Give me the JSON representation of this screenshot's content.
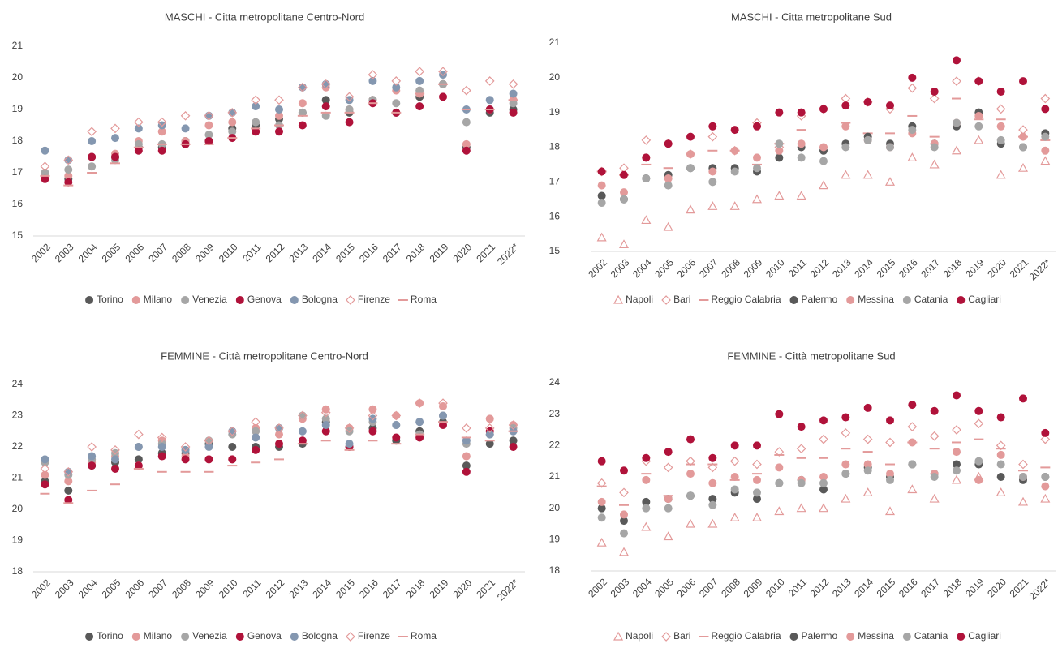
{
  "chart_data": [
    {
      "type": "scatter",
      "title": "MASCHI - Citta metropolitane Centro-Nord",
      "categories": [
        "2002",
        "2003",
        "2004",
        "2005",
        "2006",
        "2007",
        "2008",
        "2009",
        "2010",
        "2011",
        "2012",
        "2013",
        "2014",
        "2015",
        "2016",
        "2017",
        "2018",
        "2019",
        "2020",
        "2021",
        "2022*"
      ],
      "ylim": [
        15,
        21
      ],
      "yticks": [
        15,
        16,
        17,
        18,
        19,
        20,
        21
      ],
      "series": [
        {
          "name": "Torino",
          "color": "#595959",
          "marker": "circle",
          "values": [
            17.0,
            16.8,
            17.5,
            17.5,
            17.8,
            17.8,
            18.0,
            18.0,
            18.4,
            18.5,
            18.7,
            18.9,
            19.3,
            18.9,
            19.3,
            18.9,
            19.4,
            19.8,
            17.8,
            18.9,
            19.0
          ]
        },
        {
          "name": "Milano",
          "color": "#e39a9a",
          "marker": "circle",
          "values": [
            16.9,
            16.9,
            17.5,
            17.6,
            18.0,
            18.3,
            18.0,
            18.5,
            18.6,
            18.3,
            18.8,
            19.2,
            19.7,
            19.0,
            19.3,
            19.6,
            19.5,
            19.8,
            17.9,
            19.0,
            19.3
          ]
        },
        {
          "name": "Venezia",
          "color": "#a6a6a6",
          "marker": "circle",
          "values": [
            17.0,
            17.1,
            17.2,
            17.4,
            17.9,
            17.9,
            17.9,
            18.2,
            18.3,
            18.6,
            18.5,
            18.9,
            18.8,
            19.0,
            19.3,
            19.2,
            19.6,
            19.8,
            18.6,
            19.0,
            19.2
          ]
        },
        {
          "name": "Genova",
          "color": "#b0123a",
          "marker": "circle",
          "values": [
            16.8,
            16.7,
            17.5,
            17.5,
            17.7,
            17.7,
            17.9,
            18.0,
            18.1,
            18.3,
            18.3,
            18.5,
            19.1,
            18.6,
            19.2,
            18.9,
            19.1,
            19.4,
            17.7,
            19.0,
            18.9
          ]
        },
        {
          "name": "Bologna",
          "color": "#8497b0",
          "marker": "circle",
          "values": [
            17.7,
            17.4,
            18.0,
            18.1,
            18.4,
            18.5,
            18.4,
            18.8,
            18.9,
            19.1,
            19.0,
            19.7,
            19.8,
            19.3,
            19.9,
            19.7,
            19.9,
            20.1,
            19.0,
            19.3,
            19.5
          ]
        },
        {
          "name": "Firenze",
          "color": "#e39a9a",
          "marker": "diamond",
          "values": [
            17.2,
            17.4,
            18.3,
            18.4,
            18.6,
            18.6,
            18.8,
            18.8,
            18.9,
            19.3,
            19.3,
            19.7,
            19.8,
            19.4,
            20.1,
            19.9,
            20.2,
            20.2,
            19.6,
            19.9,
            19.8
          ]
        },
        {
          "name": "Roma",
          "color": "#e39a9a",
          "marker": "dash",
          "values": [
            16.9,
            16.6,
            17.0,
            17.3,
            17.8,
            17.9,
            17.9,
            17.9,
            18.1,
            18.4,
            18.5,
            18.8,
            18.9,
            18.9,
            19.2,
            18.9,
            19.5,
            19.8,
            19.0,
            19.0,
            19.3
          ]
        }
      ]
    },
    {
      "type": "scatter",
      "title": "MASCHI - Citta metropolitane Sud",
      "categories": [
        "2002",
        "2003",
        "2004",
        "2005",
        "2006",
        "2007",
        "2008",
        "2009",
        "2010",
        "2011",
        "2012",
        "2013",
        "2014",
        "2015",
        "2016",
        "2017",
        "2018",
        "2019",
        "2020",
        "2021",
        "2022*"
      ],
      "ylim": [
        15,
        21
      ],
      "yticks": [
        15,
        16,
        17,
        18,
        19,
        20,
        21
      ],
      "series": [
        {
          "name": "Napoli",
          "color": "#e39a9a",
          "marker": "triangle",
          "values": [
            15.4,
            15.2,
            15.9,
            15.7,
            16.2,
            16.3,
            16.3,
            16.5,
            16.6,
            16.6,
            16.9,
            17.2,
            17.2,
            17.0,
            17.7,
            17.5,
            17.9,
            18.2,
            17.2,
            17.4,
            17.6
          ]
        },
        {
          "name": "Bari",
          "color": "#e39a9a",
          "marker": "diamond",
          "values": [
            17.3,
            17.4,
            18.2,
            18.1,
            17.8,
            18.3,
            17.9,
            18.7,
            18.0,
            18.9,
            19.1,
            19.4,
            19.3,
            19.1,
            19.7,
            19.4,
            19.9,
            19.9,
            19.1,
            18.5,
            19.4
          ]
        },
        {
          "name": "Reggio Calabria",
          "color": "#e39a9a",
          "marker": "dash",
          "values": [
            17.3,
            17.2,
            17.5,
            17.4,
            17.8,
            17.9,
            17.9,
            17.5,
            18.1,
            18.5,
            18.0,
            18.7,
            18.4,
            18.4,
            18.9,
            18.3,
            19.4,
            18.8,
            18.8,
            18.3,
            18.2
          ]
        },
        {
          "name": "Palermo",
          "color": "#595959",
          "marker": "circle",
          "values": [
            16.6,
            16.5,
            17.1,
            17.2,
            17.4,
            17.4,
            17.4,
            17.3,
            17.7,
            18.0,
            17.9,
            18.1,
            18.3,
            18.1,
            18.6,
            18.1,
            18.6,
            19.0,
            18.1,
            18.0,
            18.4
          ]
        },
        {
          "name": "Messina",
          "color": "#e39a9a",
          "marker": "circle",
          "values": [
            16.9,
            16.7,
            17.7,
            17.1,
            17.8,
            17.3,
            17.9,
            17.7,
            17.9,
            18.1,
            18.0,
            18.6,
            18.2,
            18.0,
            18.4,
            18.1,
            18.7,
            18.9,
            18.6,
            18.3,
            17.9
          ]
        },
        {
          "name": "Catania",
          "color": "#a6a6a6",
          "marker": "circle",
          "values": [
            16.4,
            16.5,
            17.1,
            16.9,
            17.4,
            17.0,
            17.3,
            17.4,
            18.1,
            17.7,
            17.6,
            18.0,
            18.2,
            18.0,
            18.5,
            18.0,
            18.7,
            18.6,
            18.2,
            18.0,
            18.3
          ]
        },
        {
          "name": "Cagliari",
          "color": "#b0123a",
          "marker": "circle",
          "values": [
            17.3,
            17.2,
            17.7,
            18.1,
            18.3,
            18.6,
            18.5,
            18.6,
            19.0,
            19.0,
            19.1,
            19.2,
            19.3,
            19.2,
            20.0,
            19.6,
            20.5,
            19.9,
            19.6,
            19.9,
            19.1
          ]
        }
      ]
    },
    {
      "type": "scatter",
      "title": "FEMMINE - Città metropolitane Centro-Nord",
      "categories": [
        "2002",
        "2003",
        "2004",
        "2005",
        "2006",
        "2007",
        "2008",
        "2009",
        "2010",
        "2011",
        "2012",
        "2013",
        "2014",
        "2015",
        "2016",
        "2017",
        "2018",
        "2019",
        "2020",
        "2021",
        "2022*"
      ],
      "ylim": [
        18,
        24
      ],
      "yticks": [
        18,
        19,
        20,
        21,
        22,
        23,
        24
      ],
      "series": [
        {
          "name": "Torino",
          "color": "#595959",
          "marker": "circle",
          "values": [
            20.9,
            20.6,
            21.4,
            21.5,
            21.6,
            21.8,
            21.8,
            22.1,
            22.0,
            22.0,
            22.0,
            22.1,
            22.8,
            22.0,
            22.6,
            22.2,
            22.5,
            22.8,
            21.4,
            22.1,
            22.2
          ]
        },
        {
          "name": "Milano",
          "color": "#e39a9a",
          "marker": "circle",
          "values": [
            21.1,
            20.9,
            21.5,
            21.7,
            21.4,
            22.2,
            21.7,
            21.6,
            21.6,
            22.6,
            22.4,
            22.9,
            23.2,
            22.6,
            23.2,
            23.0,
            23.4,
            23.3,
            21.7,
            22.9,
            22.7
          ]
        },
        {
          "name": "Venezia",
          "color": "#a6a6a6",
          "marker": "circle",
          "values": [
            21.5,
            21.1,
            21.6,
            21.8,
            22.0,
            22.1,
            21.9,
            22.2,
            22.4,
            22.5,
            22.6,
            23.0,
            22.9,
            22.5,
            22.8,
            22.7,
            22.4,
            23.0,
            22.1,
            22.4,
            22.6
          ]
        },
        {
          "name": "Genova",
          "color": "#b0123a",
          "marker": "circle",
          "values": [
            20.8,
            20.3,
            21.4,
            21.3,
            21.4,
            21.7,
            21.6,
            21.6,
            21.6,
            21.9,
            22.1,
            22.2,
            22.5,
            22.0,
            22.5,
            22.3,
            22.3,
            22.7,
            21.2,
            22.5,
            22.0
          ]
        },
        {
          "name": "Bologna",
          "color": "#8497b0",
          "marker": "circle",
          "values": [
            21.6,
            21.2,
            21.7,
            21.6,
            22.0,
            22.0,
            21.9,
            22.0,
            22.5,
            22.3,
            22.6,
            22.5,
            22.7,
            22.1,
            22.9,
            22.7,
            22.8,
            23.0,
            22.2,
            22.4,
            22.5
          ]
        },
        {
          "name": "Firenze",
          "color": "#e39a9a",
          "marker": "diamond",
          "values": [
            21.3,
            21.2,
            22.0,
            21.9,
            22.4,
            22.3,
            22.0,
            22.2,
            22.5,
            22.8,
            22.6,
            23.0,
            23.1,
            22.6,
            23.0,
            23.0,
            23.4,
            23.4,
            22.6,
            22.6,
            22.7
          ]
        },
        {
          "name": "Roma",
          "color": "#e39a9a",
          "marker": "dash",
          "values": [
            20.5,
            20.2,
            20.6,
            20.8,
            21.3,
            21.2,
            21.2,
            21.2,
            21.4,
            21.5,
            21.6,
            22.1,
            22.2,
            21.9,
            22.2,
            22.1,
            22.4,
            22.8,
            22.3,
            22.2,
            22.5
          ]
        }
      ]
    },
    {
      "type": "scatter",
      "title": "FEMMINE - Città metropolitane Sud",
      "categories": [
        "2002",
        "2003",
        "2004",
        "2005",
        "2006",
        "2007",
        "2008",
        "2009",
        "2010",
        "2011",
        "2012",
        "2013",
        "2014",
        "2015",
        "2016",
        "2017",
        "2018",
        "2019",
        "2020",
        "2021",
        "2022*"
      ],
      "ylim": [
        18,
        24
      ],
      "yticks": [
        18,
        19,
        20,
        21,
        22,
        23,
        24
      ],
      "series": [
        {
          "name": "Napoli",
          "color": "#e39a9a",
          "marker": "triangle",
          "values": [
            18.9,
            18.6,
            19.4,
            19.1,
            19.5,
            19.5,
            19.7,
            19.7,
            19.9,
            20.0,
            20.0,
            20.3,
            20.5,
            19.9,
            20.6,
            20.3,
            20.9,
            21.0,
            20.5,
            20.2,
            20.3
          ]
        },
        {
          "name": "Bari",
          "color": "#e39a9a",
          "marker": "diamond",
          "values": [
            20.8,
            20.5,
            21.5,
            21.3,
            21.5,
            21.3,
            21.5,
            21.4,
            21.8,
            21.9,
            22.2,
            22.4,
            22.2,
            22.1,
            22.6,
            22.3,
            22.5,
            22.7,
            22.0,
            21.4,
            22.2
          ]
        },
        {
          "name": "Reggio Calabria",
          "color": "#e39a9a",
          "marker": "dash",
          "values": [
            20.7,
            20.1,
            21.1,
            20.4,
            21.4,
            21.4,
            20.9,
            21.1,
            21.7,
            21.6,
            21.6,
            21.9,
            21.8,
            21.4,
            22.1,
            21.9,
            22.1,
            22.2,
            21.9,
            21.2,
            21.3
          ]
        },
        {
          "name": "Palermo",
          "color": "#595959",
          "marker": "circle",
          "values": [
            20.0,
            19.6,
            20.2,
            20.3,
            20.4,
            20.3,
            20.5,
            20.3,
            20.8,
            20.9,
            20.6,
            21.1,
            21.3,
            21.0,
            21.4,
            21.1,
            21.4,
            21.4,
            21.0,
            20.9,
            21.0
          ]
        },
        {
          "name": "Messina",
          "color": "#e39a9a",
          "marker": "circle",
          "values": [
            20.2,
            19.8,
            20.9,
            20.3,
            21.1,
            20.8,
            21.0,
            20.9,
            21.3,
            20.9,
            21.0,
            21.4,
            21.4,
            21.1,
            22.1,
            21.1,
            21.8,
            20.9,
            21.7,
            21.0,
            20.7
          ]
        },
        {
          "name": "Catania",
          "color": "#a6a6a6",
          "marker": "circle",
          "values": [
            19.7,
            19.2,
            20.0,
            20.0,
            20.4,
            20.1,
            20.6,
            20.5,
            20.8,
            20.8,
            20.8,
            21.1,
            21.2,
            20.9,
            21.4,
            21.0,
            21.2,
            21.5,
            21.4,
            21.0,
            21.0
          ]
        },
        {
          "name": "Cagliari",
          "color": "#b0123a",
          "marker": "circle",
          "values": [
            21.5,
            21.2,
            21.6,
            21.8,
            22.2,
            21.6,
            22.0,
            22.0,
            23.0,
            22.6,
            22.8,
            22.9,
            23.2,
            22.8,
            23.3,
            23.1,
            23.6,
            23.1,
            22.9,
            23.5,
            22.4
          ]
        }
      ]
    }
  ]
}
